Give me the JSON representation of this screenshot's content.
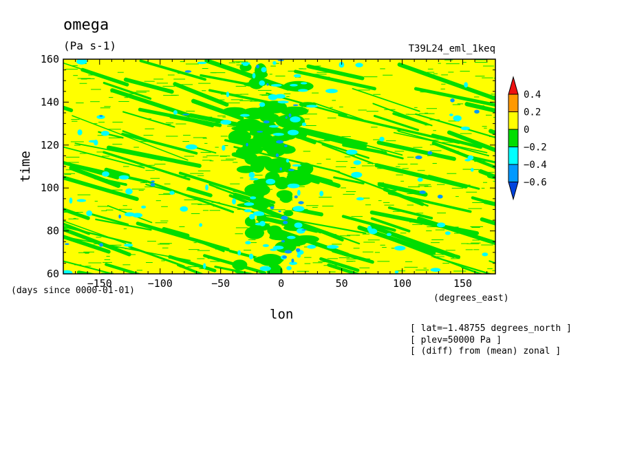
{
  "chart_data": {
    "type": "heatmap",
    "title": "omega",
    "units": "(Pa s-1)",
    "experiment": "T39L24_eml_1keq",
    "xlabel": "lon",
    "xunits": "(degrees_east)",
    "ylabel": "time",
    "time_units": "(days since 0000-01-01)",
    "xlim": [
      -180,
      177
    ],
    "ylim": [
      60,
      160
    ],
    "x_ticks": [
      -150,
      -100,
      -50,
      0,
      50,
      100,
      150
    ],
    "y_ticks": [
      60,
      80,
      100,
      120,
      140,
      160
    ],
    "x_tick_labels": [
      "−150",
      "−100",
      "−50",
      "0",
      "50",
      "100",
      "150"
    ],
    "y_tick_labels": [
      "60",
      "80",
      "100",
      "120",
      "140",
      "160"
    ],
    "colorbar": {
      "levels": [
        "0.4",
        "0.2",
        "0",
        "−0.2",
        "−0.4",
        "−0.6"
      ],
      "colors": [
        "#ee1111",
        "#ff9900",
        "#ffff00",
        "#00dd00",
        "#00ffff",
        "#0099ff",
        "#0044dd"
      ]
    },
    "info": [
      "[ lat=−1.48755 degrees_north ]",
      "[ plev=50000 Pa ]",
      "[ (diff) from (mean) zonal ]"
    ]
  }
}
